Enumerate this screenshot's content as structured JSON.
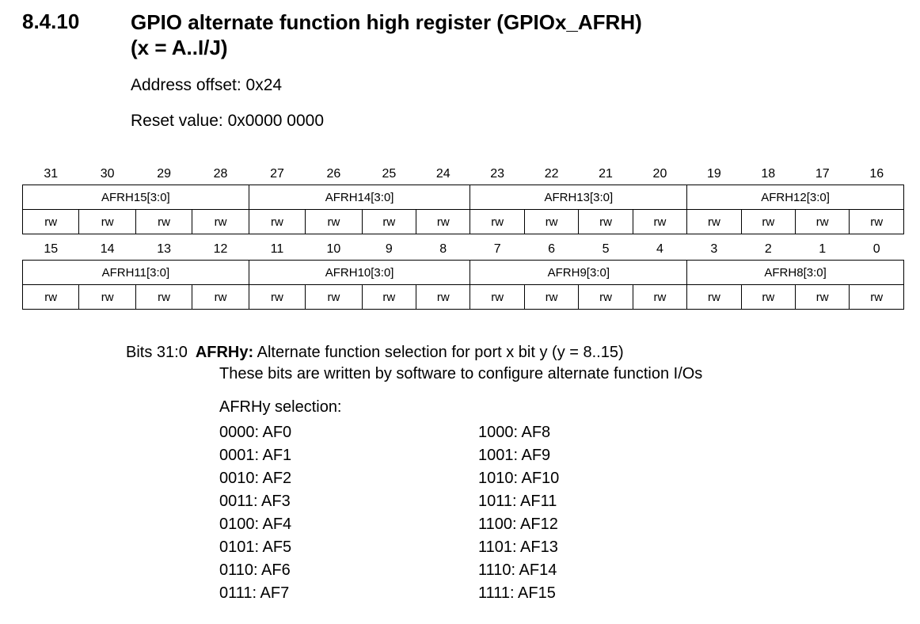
{
  "section": {
    "number": "8.4.10",
    "title_line1": "GPIO alternate function high register (GPIOx_AFRH)",
    "title_line2": "(x = A..I/J)",
    "address_offset": "Address offset: 0x24",
    "reset_value": "Reset value: 0x0000 0000"
  },
  "register_top": {
    "bits": [
      "31",
      "30",
      "29",
      "28",
      "27",
      "26",
      "25",
      "24",
      "23",
      "22",
      "21",
      "20",
      "19",
      "18",
      "17",
      "16"
    ],
    "fields": [
      "AFRH15[3:0]",
      "AFRH14[3:0]",
      "AFRH13[3:0]",
      "AFRH12[3:0]"
    ],
    "access": [
      "rw",
      "rw",
      "rw",
      "rw",
      "rw",
      "rw",
      "rw",
      "rw",
      "rw",
      "rw",
      "rw",
      "rw",
      "rw",
      "rw",
      "rw",
      "rw"
    ]
  },
  "register_bottom": {
    "bits": [
      "15",
      "14",
      "13",
      "12",
      "11",
      "10",
      "9",
      "8",
      "7",
      "6",
      "5",
      "4",
      "3",
      "2",
      "1",
      "0"
    ],
    "fields": [
      "AFRH11[3:0]",
      "AFRH10[3:0]",
      "AFRH9[3:0]",
      "AFRH8[3:0]"
    ],
    "access": [
      "rw",
      "rw",
      "rw",
      "rw",
      "rw",
      "rw",
      "rw",
      "rw",
      "rw",
      "rw",
      "rw",
      "rw",
      "rw",
      "rw",
      "rw",
      "rw"
    ]
  },
  "description": {
    "bits_label": "Bits 31:0",
    "field_name": "AFRHy:",
    "field_desc": " Alternate function selection for port x bit y (y = 8..15)",
    "detail": "These bits are written by software to configure alternate function I/Os",
    "selection_label": "AFRHy selection:",
    "selection_left": [
      "0000: AF0",
      "0001: AF1",
      "0010: AF2",
      "0011: AF3",
      "0100: AF4",
      "0101: AF5",
      "0110: AF6",
      "0111: AF7"
    ],
    "selection_right": [
      "1000: AF8",
      "1001: AF9",
      "1010: AF10",
      "1011: AF11",
      "1100: AF12",
      "1101: AF13",
      "1110: AF14",
      "1111: AF15"
    ]
  }
}
